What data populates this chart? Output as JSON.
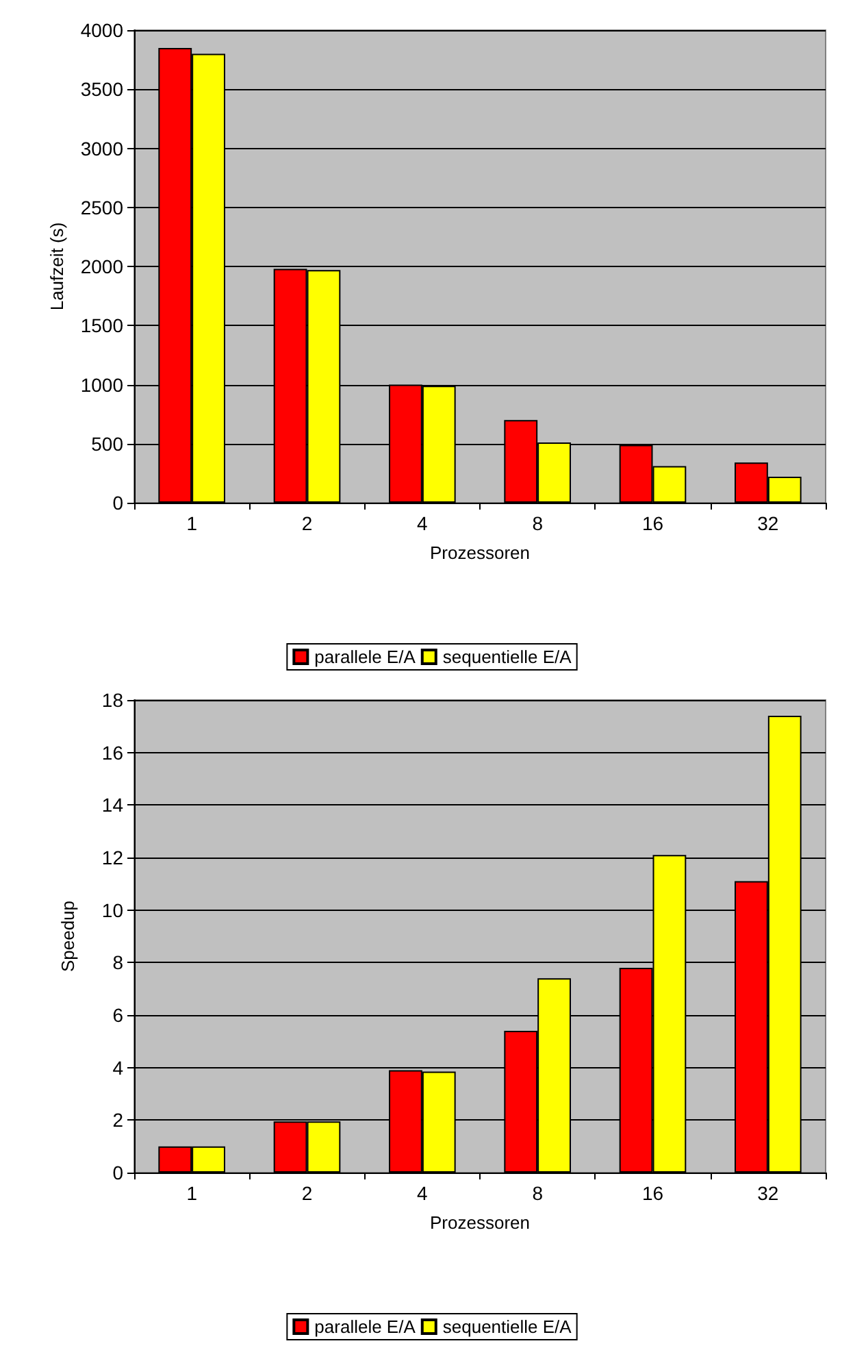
{
  "chart_data": [
    {
      "type": "bar",
      "xlabel": "Prozessoren",
      "ylabel": "Laufzeit (s)",
      "categories": [
        "1",
        "2",
        "4",
        "8",
        "16",
        "32"
      ],
      "ylim": [
        0,
        4000
      ],
      "yticks": [
        0,
        500,
        1000,
        1500,
        2000,
        2500,
        3000,
        3500,
        4000
      ],
      "grid": "y",
      "legend": "bottom",
      "series": [
        {
          "name": "parallele E/A",
          "color": "#ff0000",
          "values": [
            3850,
            1980,
            1000,
            700,
            490,
            340
          ]
        },
        {
          "name": "sequentielle E/A",
          "color": "#ffff00",
          "values": [
            3800,
            1970,
            990,
            510,
            310,
            220
          ]
        }
      ]
    },
    {
      "type": "bar",
      "xlabel": "Prozessoren",
      "ylabel": "Speedup",
      "categories": [
        "1",
        "2",
        "4",
        "8",
        "16",
        "32"
      ],
      "ylim": [
        0,
        18
      ],
      "yticks": [
        0,
        2,
        4,
        6,
        8,
        10,
        12,
        14,
        16,
        18
      ],
      "grid": "y",
      "legend": "bottom",
      "series": [
        {
          "name": "parallele E/A",
          "color": "#ff0000",
          "values": [
            1.0,
            1.95,
            3.9,
            5.4,
            7.8,
            11.1
          ]
        },
        {
          "name": "sequentielle E/A",
          "color": "#ffff00",
          "values": [
            1.0,
            1.95,
            3.85,
            7.4,
            12.1,
            17.4
          ]
        }
      ]
    }
  ]
}
